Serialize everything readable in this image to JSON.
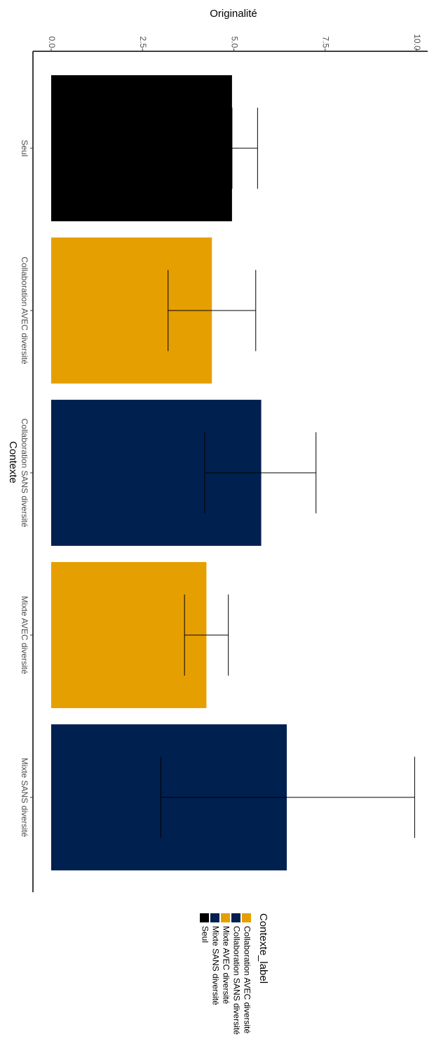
{
  "chart_data": {
    "type": "bar",
    "orientation": "rotated-90-clockwise",
    "xlabel": "Contexte",
    "ylabel": "Originalité",
    "categories": [
      "Seul",
      "Collaboration AVEC diversité",
      "Collaboration SANS diversité",
      "Mixte AVEC diversité",
      "Mixte SANS diversité"
    ],
    "values": [
      4.95,
      4.4,
      5.75,
      4.25,
      6.45
    ],
    "error_low": [
      4.95,
      3.2,
      4.2,
      3.65,
      3.0
    ],
    "error_high": [
      5.65,
      5.6,
      7.25,
      4.85,
      9.95
    ],
    "colors": [
      "#000000",
      "#E69F00",
      "#002050",
      "#E69F00",
      "#002050"
    ],
    "ylim": [
      0,
      10
    ],
    "yticks": [
      "0.0",
      "2.5",
      "5.0",
      "7.5",
      "10.0"
    ],
    "ytick_values": [
      0,
      2.5,
      5,
      7.5,
      10
    ],
    "grid": false,
    "legend": {
      "title": "Contexte_label",
      "placement": "bottom",
      "entries": [
        {
          "label": "Collaboration AVEC diversité",
          "color": "#E69F00"
        },
        {
          "label": "Collaboration SANS diversité",
          "color": "#002050"
        },
        {
          "label": "Mixte AVEC diversité",
          "color": "#E69F00"
        },
        {
          "label": "Mixte SANS diversité",
          "color": "#002050"
        },
        {
          "label": "Seul",
          "color": "#000000"
        }
      ]
    }
  }
}
